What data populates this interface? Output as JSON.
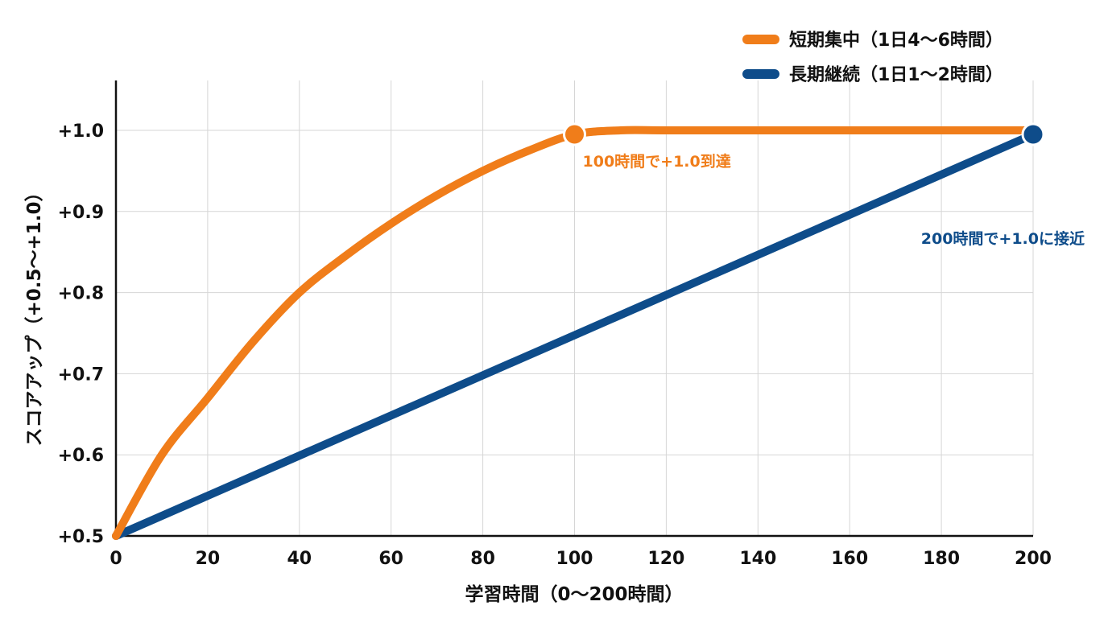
{
  "chart_data": {
    "type": "line",
    "xlabel": "学習時間（0〜200時間）",
    "ylabel": "スコアアップ（+0.5〜+1.0）",
    "xlim": [
      0,
      200
    ],
    "ylim": [
      0.5,
      1.0
    ],
    "x_ticks": [
      0,
      20,
      40,
      60,
      80,
      100,
      120,
      140,
      160,
      180,
      200
    ],
    "x_tick_labels": [
      "0",
      "20",
      "40",
      "60",
      "80",
      "100",
      "120",
      "140",
      "160",
      "180",
      "200"
    ],
    "y_ticks": [
      0.5,
      0.6,
      0.7,
      0.8,
      0.9,
      1.0
    ],
    "y_tick_labels": [
      "+0.5",
      "+0.6",
      "+0.7",
      "+0.8",
      "+0.9",
      "+1.0"
    ],
    "grid": true,
    "legend_position": "top-right",
    "series": [
      {
        "name": "短期集中（1日4〜6時間）",
        "color": "#F07D1A",
        "x": [
          0,
          10,
          20,
          30,
          40,
          50,
          60,
          70,
          80,
          90,
          100,
          110,
          120,
          140,
          160,
          180,
          200
        ],
        "y": [
          0.5,
          0.6,
          0.67,
          0.74,
          0.8,
          0.845,
          0.885,
          0.92,
          0.95,
          0.975,
          0.995,
          1.0,
          1.0,
          1.0,
          1.0,
          1.0,
          1.0
        ]
      },
      {
        "name": "長期継続（1日1〜2時間）",
        "color": "#0E4C8A",
        "x": [
          0,
          200
        ],
        "y": [
          0.5,
          0.995
        ]
      }
    ],
    "markers": [
      {
        "series": 0,
        "x": 100,
        "y": 0.995
      },
      {
        "series": 1,
        "x": 200,
        "y": 0.995
      }
    ],
    "annotations": [
      {
        "text": "100時間で+1.0到達",
        "color": "#F07D1A",
        "x": 100,
        "y": 0.995
      },
      {
        "text": "200時間で+1.0に接近",
        "color": "#0E4C8A",
        "x": 200,
        "y": 0.995
      }
    ]
  }
}
